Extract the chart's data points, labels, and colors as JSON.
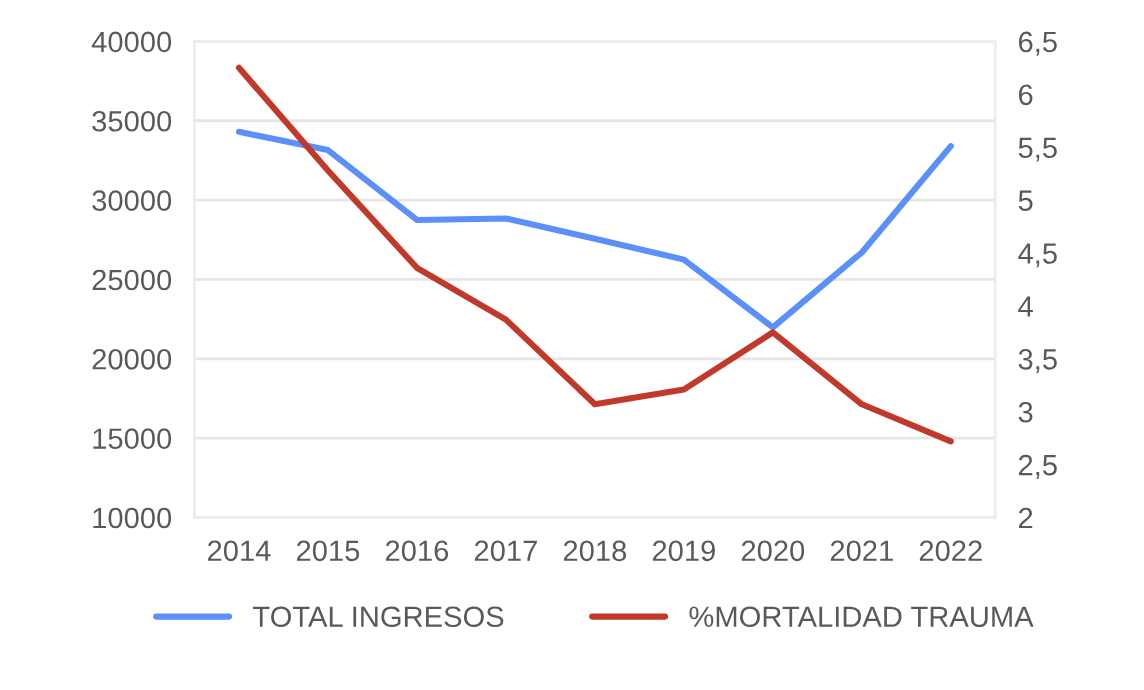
{
  "chart_data": {
    "type": "line",
    "categories": [
      "2014",
      "2015",
      "2016",
      "2017",
      "2018",
      "2019",
      "2020",
      "2021",
      "2022"
    ],
    "series": [
      {
        "name": "TOTAL INGRESOS",
        "color": "#5b8ff9",
        "values": [
          34300,
          33150,
          28750,
          28840,
          27570,
          26250,
          21980,
          26700,
          33400
        ]
      },
      {
        "name": "%MORTALIDAD TRAUMA",
        "color": "#c0392b",
        "axis": "y2",
        "values": [
          6.25,
          5.28,
          4.36,
          3.87,
          3.07,
          3.21,
          3.75,
          3.07,
          2.72
        ]
      }
    ],
    "ylim": [
      10000,
      40000
    ],
    "yticks": [
      10000,
      15000,
      20000,
      25000,
      30000,
      35000,
      40000
    ],
    "y2lim": [
      2,
      6.5
    ],
    "y2ticks": [
      2,
      {
        "value": 2.5,
        "label": "2,5"
      },
      3,
      {
        "value": 3.5,
        "label": "3,5"
      },
      4,
      {
        "value": 4.5,
        "label": "4,5"
      },
      5,
      {
        "value": 5.5,
        "label": "5,5"
      },
      6,
      {
        "value": 6.5,
        "label": "6,5"
      }
    ],
    "grid": "y",
    "legend": "bottom",
    "marker": "none",
    "line_style": "solid"
  }
}
